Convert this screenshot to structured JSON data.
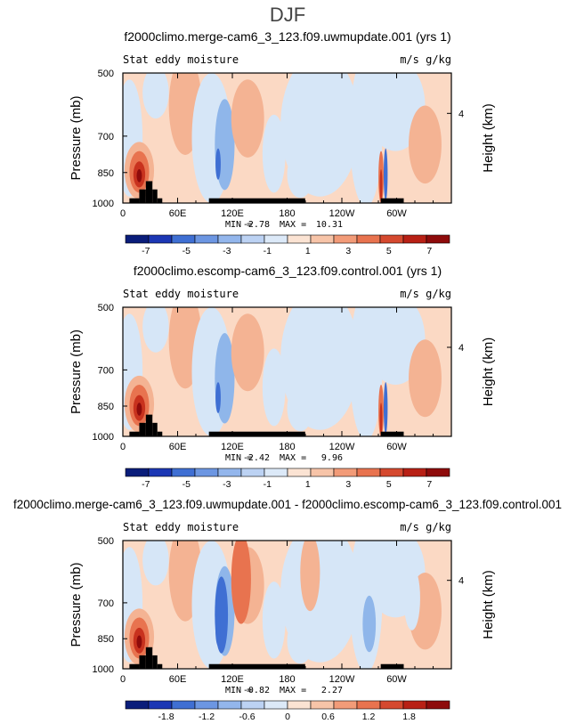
{
  "page": {
    "title": "DJF"
  },
  "colors": {
    "red_dark": "#8e0b0b",
    "red": "#c8321e",
    "orange": "#e8734f",
    "salmon": "#f4b393",
    "peach": "#fbd9c4",
    "light_blue": "#d6e6f7",
    "blue_mid": "#8fb6ea",
    "blue": "#3f6fd3",
    "navy": "#0a1d7a",
    "topo": "#000000",
    "frame": "#000000"
  },
  "chart_data": [
    {
      "type": "heatmap",
      "title": "f2000climo.merge-cam6_3_123.f09.uwmupdate.001 (yrs 1)",
      "left_label": "Stat eddy moisture",
      "right_label": "m/s g/kg",
      "ylabel": "Pressure (mb)",
      "ylabel_right": "Height (km)",
      "y_ticks": [
        "500",
        "700",
        "850",
        "1000"
      ],
      "y_right_ticks": [
        "4"
      ],
      "x_ticks": [
        "0",
        "60E",
        "120E",
        "180",
        "120W",
        "60W"
      ],
      "min_label": "MIN =",
      "min_value": "-2.78",
      "max_label": "MAX =",
      "max_value": "10.31",
      "colorbar_labels": [
        "-7",
        "-5",
        "-3",
        "-1",
        "1",
        "3",
        "5",
        "7"
      ],
      "colorbar_range": [
        -8,
        8
      ]
    },
    {
      "type": "heatmap",
      "title": "f2000climo.escomp-cam6_3_123.f09.control.001 (yrs 1)",
      "left_label": "Stat eddy moisture",
      "right_label": "m/s g/kg",
      "ylabel": "Pressure (mb)",
      "ylabel_right": "Height (km)",
      "y_ticks": [
        "500",
        "700",
        "850",
        "1000"
      ],
      "y_right_ticks": [
        "4"
      ],
      "x_ticks": [
        "0",
        "60E",
        "120E",
        "180",
        "120W",
        "60W"
      ],
      "min_label": "MIN =",
      "min_value": "-2.42",
      "max_label": "MAX =",
      "max_value": "9.96",
      "colorbar_labels": [
        "-7",
        "-5",
        "-3",
        "-1",
        "1",
        "3",
        "5",
        "7"
      ],
      "colorbar_range": [
        -8,
        8
      ]
    },
    {
      "type": "heatmap",
      "title": "f2000climo.merge-cam6_3_123.f09.uwmupdate.001 - f2000climo.escomp-cam6_3_123.f09.control.001",
      "left_label": "Stat eddy moisture",
      "right_label": "m/s g/kg",
      "ylabel": "Pressure (mb)",
      "ylabel_right": "Height (km)",
      "y_ticks": [
        "500",
        "700",
        "850",
        "1000"
      ],
      "y_right_ticks": [
        "4"
      ],
      "x_ticks": [
        "0",
        "60E",
        "120E",
        "180",
        "120W",
        "60W"
      ],
      "min_label": "MIN =",
      "min_value": "-0.82",
      "max_label": "MAX =",
      "max_value": "2.27",
      "colorbar_labels": [
        "-1.8",
        "-1.2",
        "-0.6",
        "0",
        "0.6",
        "1.2",
        "1.8"
      ],
      "colorbar_range": [
        -2.4,
        2.4
      ]
    }
  ]
}
